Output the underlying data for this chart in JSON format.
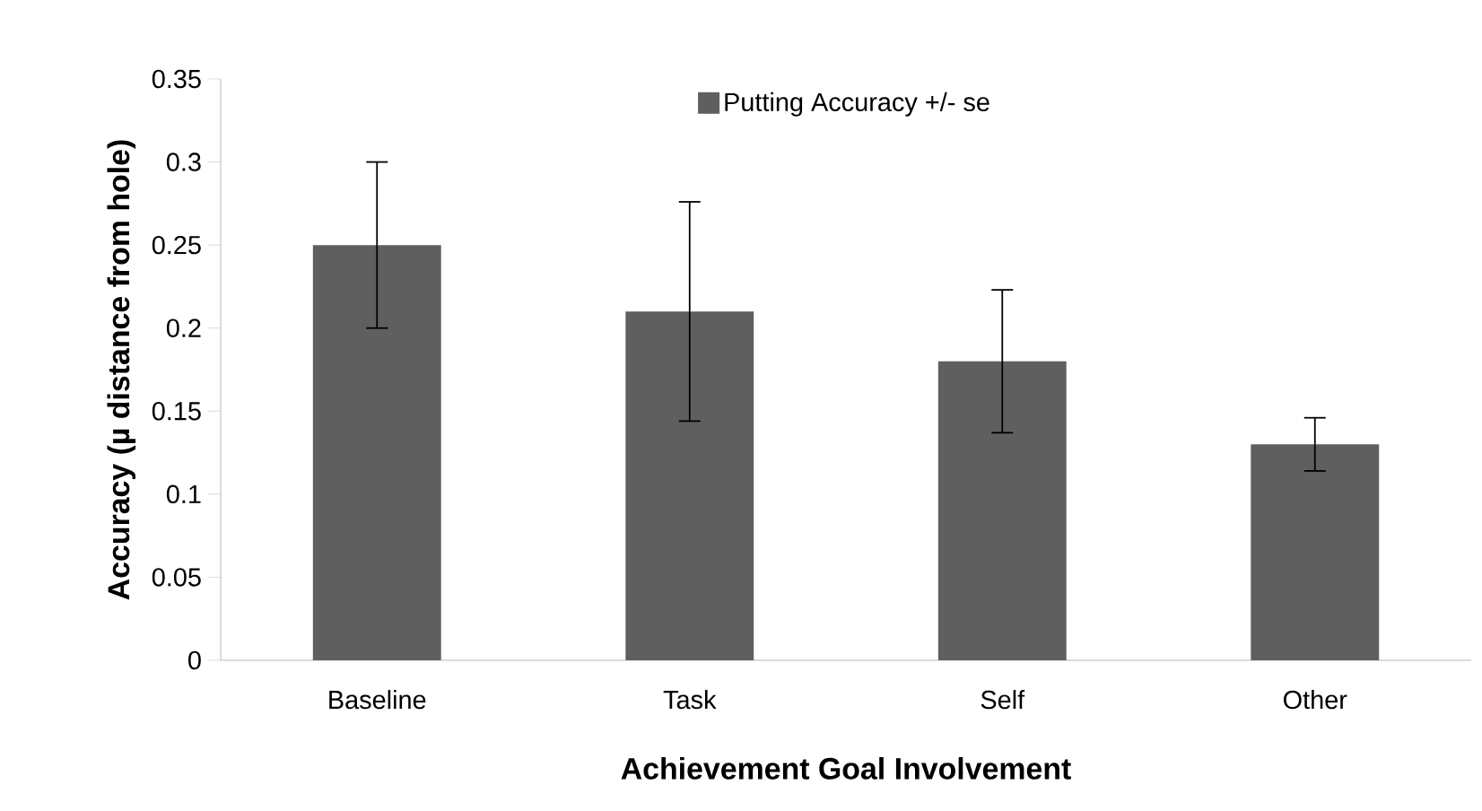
{
  "chart_data": {
    "type": "bar",
    "xlabel": "Achievement Goal Involvement",
    "ylabel": "Accuracy (µ distance from hole)",
    "categories": [
      "Baseline",
      "Task",
      "Self",
      "Other"
    ],
    "series": [
      {
        "name": "Putting Accuracy +/- se",
        "color": "#5f5f5f",
        "values": [
          0.25,
          0.21,
          0.18,
          0.13
        ],
        "errors": [
          0.05,
          0.066,
          0.043,
          0.016
        ]
      }
    ],
    "ylim": [
      0,
      0.35
    ],
    "yticks": [
      0,
      0.05,
      0.1,
      0.15,
      0.2,
      0.25,
      0.3,
      0.35
    ],
    "grid": false,
    "legend": "top"
  }
}
